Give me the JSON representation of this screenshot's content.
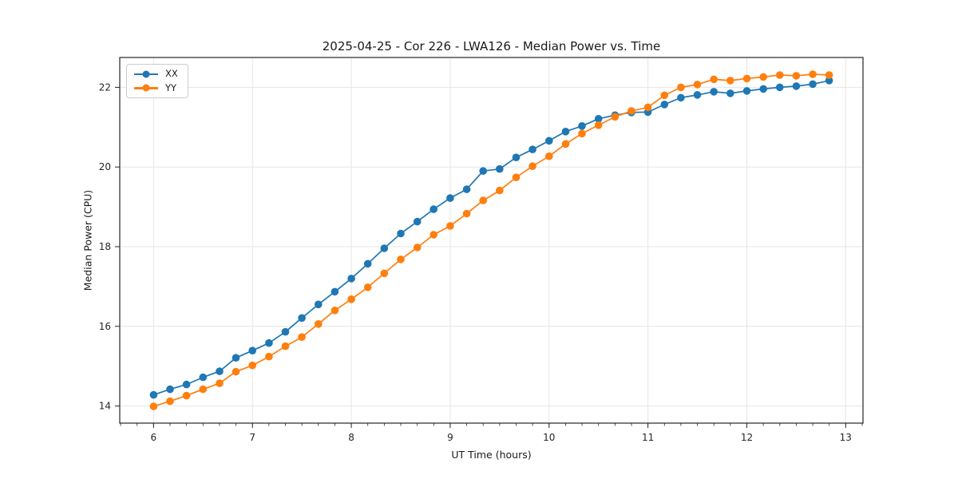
{
  "chart_data": {
    "type": "line",
    "title": "2025-04-25 - Cor 226 - LWA126 - Median Power vs. Time",
    "xlabel": "UT Time (hours)",
    "ylabel": "Median Power (CPU)",
    "x": [
      6.0,
      6.167,
      6.333,
      6.5,
      6.667,
      6.833,
      7.0,
      7.167,
      7.333,
      7.5,
      7.667,
      7.833,
      8.0,
      8.167,
      8.333,
      8.5,
      8.667,
      8.833,
      9.0,
      9.167,
      9.333,
      9.5,
      9.667,
      9.833,
      10.0,
      10.167,
      10.333,
      10.5,
      10.667,
      10.833,
      11.0,
      11.167,
      11.333,
      11.5,
      11.667,
      11.833,
      12.0,
      12.167,
      12.333,
      12.5,
      12.667,
      12.833
    ],
    "series": [
      {
        "name": "XX",
        "color": "#1f77b4",
        "values": [
          14.28,
          14.42,
          14.54,
          14.72,
          14.87,
          15.21,
          15.39,
          15.58,
          15.86,
          16.21,
          16.55,
          16.87,
          17.2,
          17.57,
          17.96,
          18.33,
          18.63,
          18.94,
          19.22,
          19.44,
          19.9,
          19.95,
          20.24,
          20.44,
          20.66,
          20.89,
          21.03,
          21.21,
          21.3,
          21.37,
          21.38,
          21.57,
          21.74,
          21.81,
          21.89,
          21.85,
          21.91,
          21.96,
          22.0,
          22.03,
          22.08,
          22.17
        ]
      },
      {
        "name": "YY",
        "color": "#ff7f0e",
        "values": [
          13.99,
          14.12,
          14.26,
          14.42,
          14.57,
          14.86,
          15.02,
          15.24,
          15.5,
          15.73,
          16.06,
          16.4,
          16.68,
          16.98,
          17.33,
          17.68,
          17.98,
          18.3,
          18.52,
          18.83,
          19.16,
          19.41,
          19.74,
          20.02,
          20.27,
          20.58,
          20.84,
          21.05,
          21.26,
          21.41,
          21.5,
          21.8,
          22.0,
          22.07,
          22.2,
          22.17,
          22.22,
          22.26,
          22.31,
          22.29,
          22.33,
          22.31
        ]
      }
    ],
    "xlim": [
      5.658,
      13.175
    ],
    "ylim": [
      13.57,
      22.75
    ],
    "xticks": [
      6,
      7,
      8,
      9,
      10,
      11,
      12,
      13
    ],
    "yticks": [
      14,
      16,
      18,
      20,
      22
    ],
    "x_minor_step": 0.16667,
    "grid": true,
    "grid_color": "#e6e6e6",
    "spine_color": "#262626",
    "tick_label_color": "#262626",
    "legend_position": "upper-left"
  }
}
